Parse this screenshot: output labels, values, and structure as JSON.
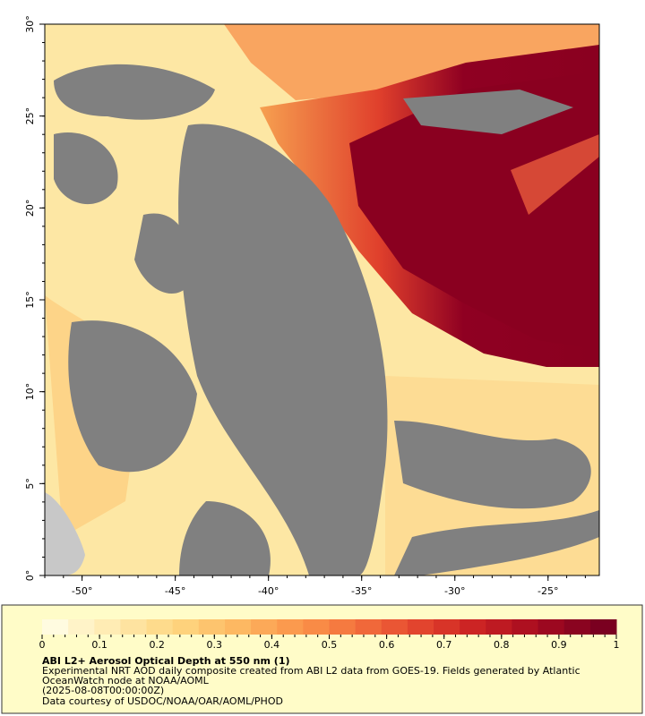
{
  "map": {
    "xlim": [
      -52,
      -22.25
    ],
    "ylim": [
      0,
      30
    ],
    "xticks": [
      {
        "value": -50,
        "label": "-50°"
      },
      {
        "value": -45,
        "label": "-45°"
      },
      {
        "value": -40,
        "label": "-40°"
      },
      {
        "value": -35,
        "label": "-35°"
      },
      {
        "value": -30,
        "label": "-30°"
      },
      {
        "value": -25,
        "label": "-25°"
      }
    ],
    "yticks": [
      {
        "value": 0,
        "label": "0°"
      },
      {
        "value": 5,
        "label": "5°"
      },
      {
        "value": 10,
        "label": "10°"
      },
      {
        "value": 15,
        "label": "15°"
      },
      {
        "value": 20,
        "label": "20°"
      },
      {
        "value": 25,
        "label": "25°"
      },
      {
        "value": 30,
        "label": "30°"
      }
    ]
  },
  "colorbar": {
    "range": [
      0,
      1
    ],
    "ticks": [
      0,
      0.1,
      0.2,
      0.3,
      0.4,
      0.5,
      0.6,
      0.7,
      0.8,
      0.9,
      1
    ],
    "colors": [
      "#fffbe0",
      "#fff3c8",
      "#ffecb4",
      "#fee3a0",
      "#fedb8c",
      "#fed27c",
      "#fdc46e",
      "#fdb862",
      "#fca958",
      "#fb9a4e",
      "#f98b46",
      "#f57a40",
      "#f0683a",
      "#ea5634",
      "#e2442e",
      "#d83428",
      "#cc2424",
      "#be1a22",
      "#ae1020",
      "#9c0820",
      "#8a0420",
      "#7a0020"
    ]
  },
  "caption": {
    "title": "ABI L2+ Aerosol Optical Depth at 550 nm (1)",
    "lines": [
      "Experimental NRT AOD daily composite created from ABI L2 data from GOES-19. Fields generated by Atlantic",
      "OceanWatch node at NOAA/AOML",
      "(2025-08-08T00:00:00Z)",
      "Data courtesy of USDOC/NOAA/OAR/AOML/PHOD"
    ]
  }
}
